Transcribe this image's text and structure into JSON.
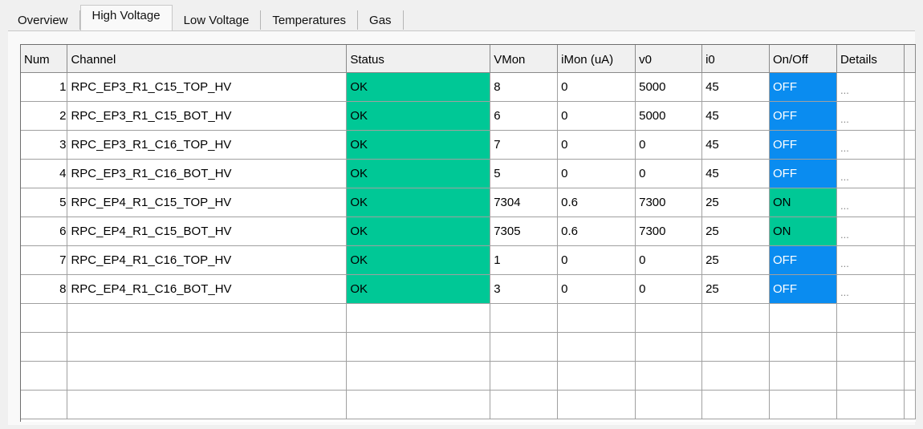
{
  "tabs": [
    {
      "label": "Overview",
      "active": false
    },
    {
      "label": "High Voltage",
      "active": true
    },
    {
      "label": "Low Voltage",
      "active": false
    },
    {
      "label": "Temperatures",
      "active": false
    },
    {
      "label": "Gas",
      "active": false
    }
  ],
  "table": {
    "columns": [
      "Num",
      "Channel",
      "Status",
      "VMon",
      "iMon (uA)",
      "v0",
      "i0",
      "On/Off",
      "Details"
    ],
    "rows": [
      {
        "num": "1",
        "channel": "RPC_EP3_R1_C15_TOP_HV",
        "status": "OK",
        "vmon": "8",
        "imon": "0",
        "v0": "5000",
        "i0": "45",
        "onoff": "OFF",
        "details": "..."
      },
      {
        "num": "2",
        "channel": "RPC_EP3_R1_C15_BOT_HV",
        "status": "OK",
        "vmon": "6",
        "imon": "0",
        "v0": "5000",
        "i0": "45",
        "onoff": "OFF",
        "details": "..."
      },
      {
        "num": "3",
        "channel": "RPC_EP3_R1_C16_TOP_HV",
        "status": "OK",
        "vmon": "7",
        "imon": "0",
        "v0": "0",
        "i0": "45",
        "onoff": "OFF",
        "details": "..."
      },
      {
        "num": "4",
        "channel": "RPC_EP3_R1_C16_BOT_HV",
        "status": "OK",
        "vmon": "5",
        "imon": "0",
        "v0": "0",
        "i0": "45",
        "onoff": "OFF",
        "details": "..."
      },
      {
        "num": "5",
        "channel": "RPC_EP4_R1_C15_TOP_HV",
        "status": "OK",
        "vmon": "7304",
        "imon": "0.6",
        "v0": "7300",
        "i0": "25",
        "onoff": "ON",
        "details": "..."
      },
      {
        "num": "6",
        "channel": "RPC_EP4_R1_C15_BOT_HV",
        "status": "OK",
        "vmon": "7305",
        "imon": "0.6",
        "v0": "7300",
        "i0": "25",
        "onoff": "ON",
        "details": "..."
      },
      {
        "num": "7",
        "channel": "RPC_EP4_R1_C16_TOP_HV",
        "status": "OK",
        "vmon": "1",
        "imon": "0",
        "v0": "0",
        "i0": "25",
        "onoff": "OFF",
        "details": "..."
      },
      {
        "num": "8",
        "channel": "RPC_EP4_R1_C16_BOT_HV",
        "status": "OK",
        "vmon": "3",
        "imon": "0",
        "v0": "0",
        "i0": "25",
        "onoff": "OFF",
        "details": "..."
      }
    ],
    "empty_rows": 4
  },
  "colors": {
    "status_ok": "#00c896",
    "on": "#00c896",
    "off": "#0a8cf0"
  }
}
